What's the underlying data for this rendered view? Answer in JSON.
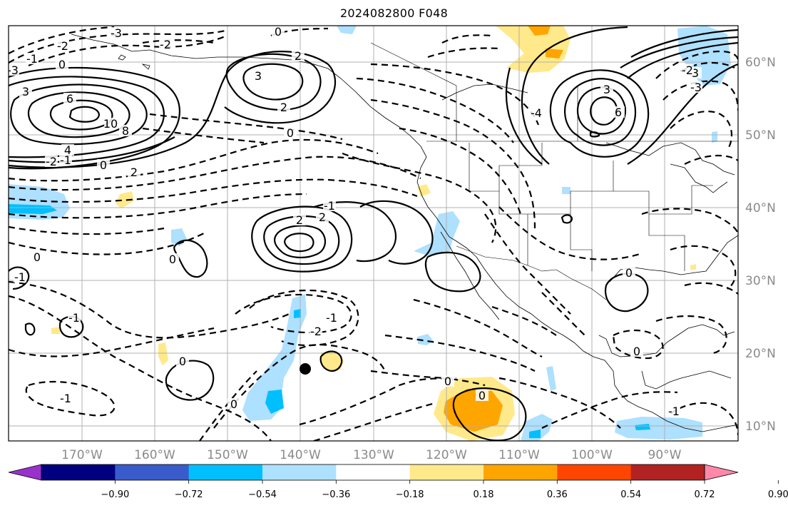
{
  "title": "2024082800 F048",
  "map": {
    "lon_labels": [
      "170°W",
      "160°W",
      "150°W",
      "140°W",
      "130°W",
      "120°W",
      "110°W",
      "100°W",
      "90°W"
    ],
    "lat_labels": [
      "60°N",
      "50°N",
      "40°N",
      "30°N",
      "20°N",
      "10°N"
    ],
    "contour_labels": [
      "-3",
      "-2",
      "-1",
      "0",
      "3",
      "6",
      "10",
      "8",
      "4",
      "-2",
      "2",
      "0",
      "2",
      "3",
      "2",
      "-2",
      "-3",
      "0",
      "-1",
      "3",
      "6",
      "3",
      "-2",
      "-3",
      "-4",
      "0",
      "2",
      "2",
      "-1",
      "0",
      "-1",
      "0",
      "-1",
      "-2",
      "-1",
      "0",
      "0",
      "-1",
      "0",
      "0",
      "0",
      "0",
      "-1"
    ],
    "marker": "storm-center-dot"
  },
  "colorbar": {
    "tick_labels": [
      "−0.90",
      "−0.72",
      "−0.54",
      "−0.36",
      "−0.18",
      "0.18",
      "0.36",
      "0.54",
      "0.72",
      "0.90"
    ],
    "colors": [
      "#9932cc",
      "#000080",
      "#3a5bcc",
      "#00bfff",
      "#aee0ff",
      "#ffffff",
      "#ffe98a",
      "#ffa500",
      "#ff4500",
      "#b22222",
      "#ff88aa"
    ]
  }
}
